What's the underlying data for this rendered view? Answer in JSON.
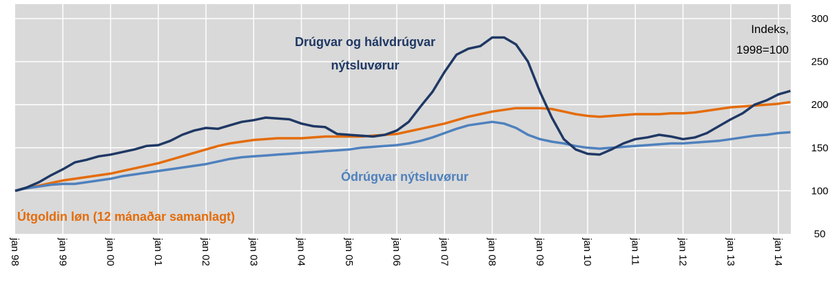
{
  "chart_data": {
    "type": "line",
    "ylabel": "Indeks, 1998=100",
    "categories": [
      "jan 98",
      null,
      null,
      null,
      "jan 99",
      null,
      null,
      null,
      "jan 00",
      null,
      null,
      null,
      "jan 01",
      null,
      null,
      null,
      "jan 02",
      null,
      null,
      null,
      "jan 03",
      null,
      null,
      null,
      "jan 04",
      null,
      null,
      null,
      "jan 05",
      null,
      null,
      null,
      "jan 06",
      null,
      null,
      null,
      "jan 07",
      null,
      null,
      null,
      "jan 08",
      null,
      null,
      null,
      "jan 09",
      null,
      null,
      null,
      "jan 10",
      null,
      null,
      null,
      "jan 11",
      null,
      null,
      null,
      "jan 12",
      null,
      null,
      null,
      "jan 13",
      null,
      null,
      null,
      "jan 14",
      null
    ],
    "series": [
      {
        "name": "Drúgvar og hálvdrúgvar nýtsluvørur",
        "color": "#1f3864",
        "values": [
          100,
          104,
          110,
          118,
          125,
          133,
          136,
          140,
          142,
          145,
          148,
          152,
          153,
          158,
          165,
          170,
          173,
          172,
          176,
          180,
          182,
          185,
          184,
          183,
          178,
          175,
          174,
          166,
          165,
          164,
          163,
          165,
          170,
          180,
          198,
          215,
          238,
          258,
          265,
          268,
          278,
          278,
          270,
          250,
          215,
          185,
          160,
          148,
          143,
          142,
          148,
          155,
          160,
          162,
          165,
          163,
          160,
          162,
          167,
          175,
          183,
          190,
          200,
          205,
          212,
          216
        ]
      },
      {
        "name": "Útgoldin løn (12 mánaðar samanlagt)",
        "color": "#e46c0a",
        "values": [
          100,
          103,
          106,
          109,
          112,
          114,
          116,
          118,
          120,
          123,
          126,
          129,
          132,
          136,
          140,
          144,
          148,
          152,
          155,
          157,
          159,
          160,
          161,
          161,
          161,
          162,
          163,
          163,
          163,
          163,
          164,
          165,
          166,
          169,
          172,
          175,
          178,
          182,
          186,
          189,
          192,
          194,
          196,
          196,
          196,
          195,
          192,
          189,
          187,
          186,
          187,
          188,
          189,
          189,
          189,
          190,
          190,
          191,
          193,
          195,
          197,
          198,
          199,
          200,
          201,
          203
        ]
      },
      {
        "name": "Ódrúgvar nýtsluvørur",
        "color": "#4f81bd",
        "values": [
          100,
          103,
          105,
          107,
          108,
          108,
          110,
          112,
          114,
          117,
          119,
          121,
          123,
          125,
          127,
          129,
          131,
          134,
          137,
          139,
          140,
          141,
          142,
          143,
          144,
          145,
          146,
          147,
          148,
          150,
          151,
          152,
          153,
          155,
          158,
          162,
          167,
          172,
          176,
          178,
          180,
          178,
          173,
          165,
          160,
          157,
          155,
          152,
          150,
          149,
          150,
          151,
          152,
          153,
          154,
          155,
          155,
          156,
          157,
          158,
          160,
          162,
          164,
          165,
          167,
          168
        ]
      }
    ],
    "ylim": [
      50,
      300
    ],
    "yticks": [
      50,
      100,
      150,
      200,
      250,
      300
    ],
    "grid": true
  }
}
